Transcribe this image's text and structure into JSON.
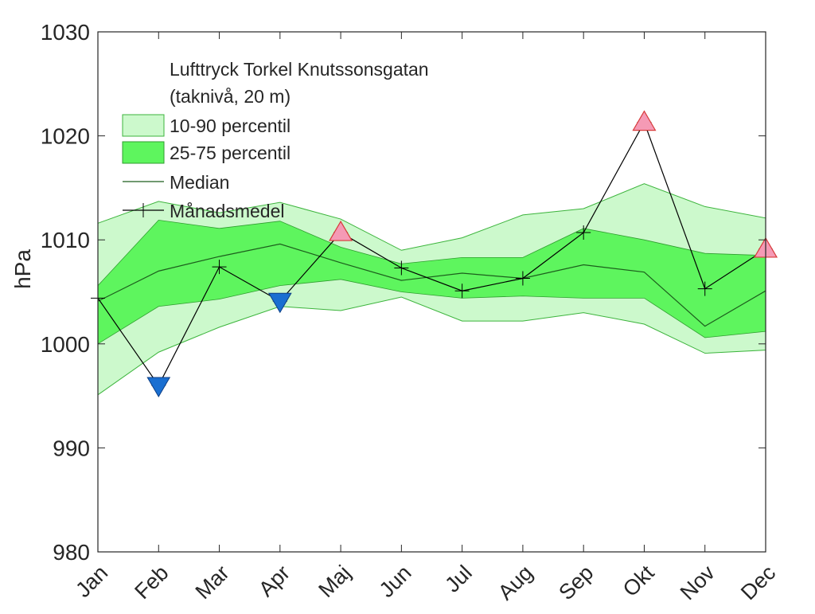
{
  "chart_data": {
    "type": "area",
    "ylabel": "hPa",
    "xlabel": "",
    "ylim": [
      980,
      1030
    ],
    "yticks": [
      980,
      990,
      1000,
      1010,
      1020,
      1030
    ],
    "categories": [
      "Jan",
      "Feb",
      "Mar",
      "Apr",
      "Maj",
      "Jun",
      "Jul",
      "Aug",
      "Sep",
      "Okt",
      "Nov",
      "Dec"
    ],
    "legend": {
      "placement": "top-left",
      "title_lines": [
        "Lufttryck Torkel Knutssonsgatan",
        "(taknivå, 20 m)"
      ],
      "entries": [
        "10-90 percentil",
        "25-75 percentil",
        "Median",
        "Månadsmedel"
      ]
    },
    "series": [
      {
        "name": "10-90 percentil",
        "lower": [
          995.1,
          999.2,
          1001.6,
          1003.6,
          1003.2,
          1004.5,
          1002.2,
          1002.2,
          1003.0,
          1001.9,
          999.1,
          999.4
        ],
        "upper": [
          1011.6,
          1013.7,
          1012.6,
          1013.6,
          1012.0,
          1009.0,
          1010.2,
          1012.4,
          1013.0,
          1015.4,
          1013.2,
          1012.1
        ],
        "color": "#ccf9cc"
      },
      {
        "name": "25-75 percentil",
        "lower": [
          1000.0,
          1003.6,
          1004.3,
          1005.6,
          1006.2,
          1005.0,
          1004.4,
          1004.6,
          1004.4,
          1004.4,
          1000.6,
          1001.2
        ],
        "upper": [
          1005.6,
          1011.9,
          1011.1,
          1011.8,
          1009.3,
          1007.7,
          1008.3,
          1008.3,
          1011.1,
          1010.0,
          1008.7,
          1008.5
        ],
        "color": "#5ef55e"
      },
      {
        "name": "Median",
        "values": [
          1004.1,
          1007.0,
          1008.4,
          1009.6,
          1007.8,
          1006.1,
          1006.8,
          1006.3,
          1007.6,
          1006.9,
          1001.7,
          1005.1
        ],
        "color": "#1c5e1c"
      },
      {
        "name": "Månadsmedel",
        "values": [
          1004.4,
          996.0,
          1007.4,
          1004.1,
          1010.7,
          1007.3,
          1005.1,
          1006.3,
          1010.7,
          1021.3,
          1005.3,
          1009.1
        ],
        "color": "#000000"
      }
    ],
    "extreme_markers": [
      {
        "month": "Feb",
        "value": 996.0,
        "kind": "low",
        "color": "#1a6fd1"
      },
      {
        "month": "Apr",
        "value": 1004.1,
        "kind": "low",
        "color": "#1a6fd1"
      },
      {
        "month": "Maj",
        "value": 1010.7,
        "kind": "high",
        "color": "#f59ab5"
      },
      {
        "month": "Okt",
        "value": 1021.3,
        "kind": "high",
        "color": "#f59ab5"
      },
      {
        "month": "Dec",
        "value": 1009.1,
        "kind": "high",
        "color": "#f59ab5"
      }
    ],
    "grid": false
  }
}
